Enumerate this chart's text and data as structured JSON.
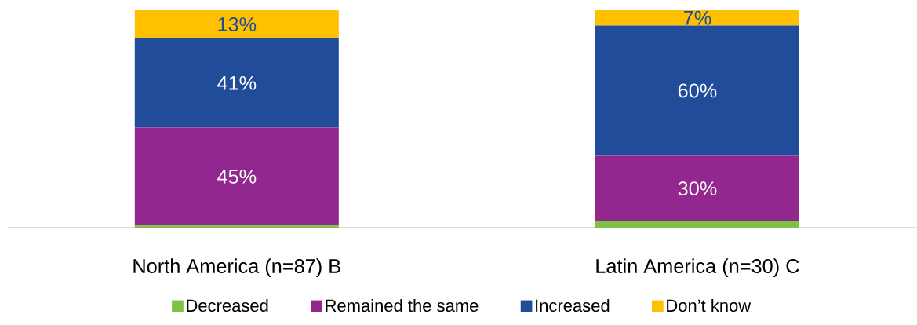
{
  "chart_data": {
    "type": "bar",
    "stacked": true,
    "categories": [
      "North America (n=87) B",
      "Latin America (n=30) C"
    ],
    "series": [
      {
        "name": "Decreased",
        "color": "#7dc242",
        "values": [
          1,
          3
        ],
        "value_labels": [
          null,
          null
        ]
      },
      {
        "name": "Remained the same",
        "color": "#92278f",
        "values": [
          45,
          30
        ],
        "value_labels": [
          "45%",
          "30%"
        ]
      },
      {
        "name": "Increased",
        "color": "#204c9a",
        "values": [
          41,
          60
        ],
        "value_labels": [
          "41%",
          "60%"
        ]
      },
      {
        "name": "Don’t know",
        "color": "#ffc000",
        "values": [
          13,
          7
        ],
        "value_labels": [
          "13%",
          "7%"
        ]
      }
    ],
    "legend": "bottom"
  }
}
